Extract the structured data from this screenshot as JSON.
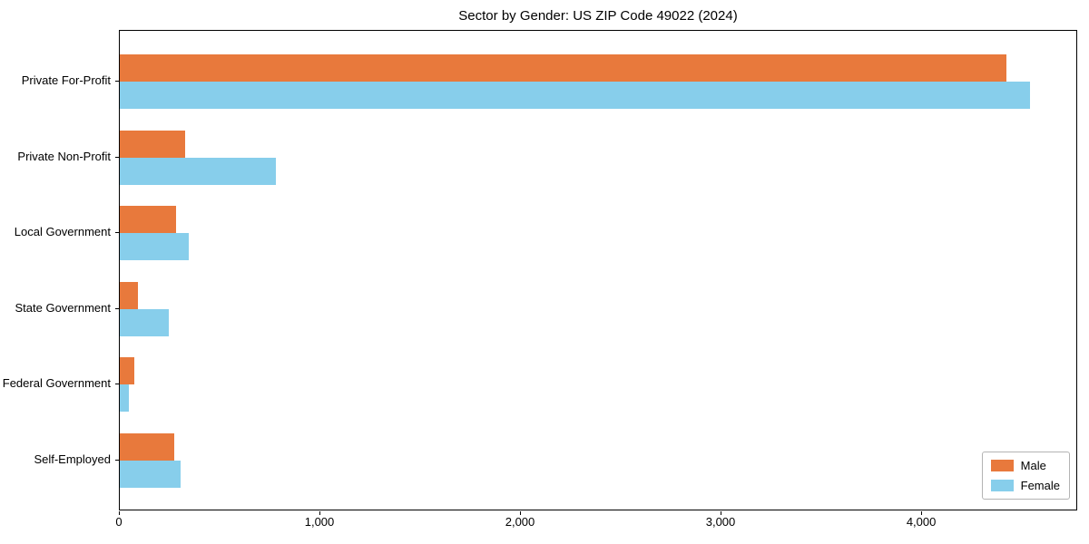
{
  "title": "Sector by Gender: US ZIP Code 49022 (2024)",
  "chart_data": {
    "type": "bar",
    "orientation": "horizontal",
    "title": "Sector by Gender: US ZIP Code 49022 (2024)",
    "categories": [
      "Private For-Profit",
      "Private Non-Profit",
      "Local Government",
      "State Government",
      "Federal Government",
      "Self-Employed"
    ],
    "series": [
      {
        "name": "Male",
        "color": "#E8793C",
        "values": [
          4420,
          325,
          280,
          90,
          70,
          270
        ]
      },
      {
        "name": "Female",
        "color": "#87CEEB",
        "values": [
          4540,
          780,
          345,
          245,
          45,
          305
        ]
      }
    ],
    "xlabel": "",
    "ylabel": "",
    "xlim": [
      0,
      4778
    ],
    "xticks": [
      0,
      1000,
      2000,
      3000,
      4000
    ],
    "xtick_labels": [
      "0",
      "1,000",
      "2,000",
      "3,000",
      "4,000"
    ],
    "grid": false,
    "legend": {
      "position": "lower right",
      "entries": [
        "Male",
        "Female"
      ]
    }
  }
}
